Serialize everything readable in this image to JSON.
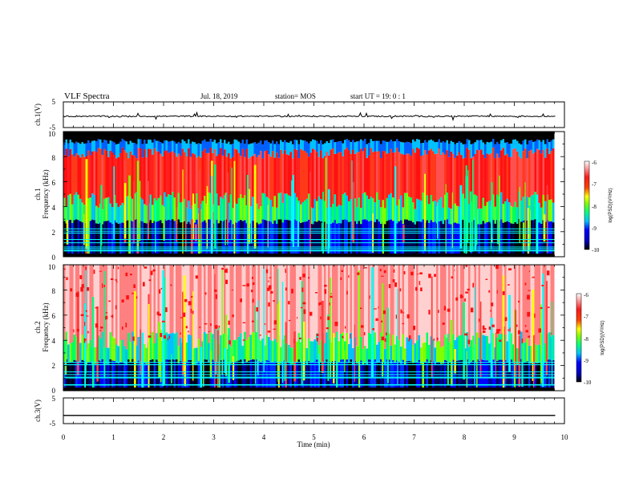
{
  "header": {
    "title": "VLF Spectra",
    "date": "Jul. 18, 2019",
    "station": "station= MOS",
    "start": "start UT =  19: 0 : 1"
  },
  "colors": {
    "spectrum": [
      "#000000",
      "#00007f",
      "#0000ff",
      "#00a0ff",
      "#00ffff",
      "#00ff60",
      "#a0ff00",
      "#ffff00",
      "#ff8000",
      "#ff2020",
      "#ff9090",
      "#ffffff"
    ],
    "trace": "#000000"
  },
  "chart_data": [
    {
      "type": "line",
      "ylabel": "ch.1(V)",
      "ylim": [
        -5,
        5
      ],
      "yticks": [
        "5",
        "-5"
      ],
      "xlim": [
        0,
        10
      ],
      "baseline": -0.6
    },
    {
      "type": "heatmap",
      "ylabel_top": "ch.1",
      "ylabel": "Frequency (kHz)",
      "ylim": [
        0,
        10
      ],
      "yticks": [
        "0",
        "2",
        "4",
        "6",
        "8",
        "10"
      ],
      "xlim": [
        0,
        9.8
      ],
      "band_kHz": {
        "blue": [
          0,
          2.8
        ],
        "green": [
          2.8,
          4.5
        ],
        "red": [
          4.5,
          8.3
        ],
        "cyan_edge": [
          8.3,
          9.2
        ],
        "black_top": [
          9.2,
          10
        ]
      },
      "colorbar": {
        "label": "log(PSD)(V²/Hz)",
        "ticks": [
          "-6",
          "-7",
          "-8",
          "-9",
          "-10"
        ],
        "range": [
          -10,
          -6
        ]
      }
    },
    {
      "type": "heatmap",
      "ylabel_top": "ch.2",
      "ylabel": "Frequency (kHz)",
      "ylim": [
        0,
        10
      ],
      "yticks": [
        "0",
        "2",
        "4",
        "6",
        "8",
        "10"
      ],
      "xlim": [
        0,
        9.8
      ],
      "band_kHz": {
        "blue": [
          0,
          2.3
        ],
        "green": [
          2.3,
          4.0
        ],
        "red": [
          4.0,
          10
        ]
      },
      "colorbar": {
        "label": "log(PSD)(V²/Hz)",
        "ticks": [
          "-6",
          "-7",
          "-8",
          "-9",
          "-10"
        ],
        "range": [
          -10,
          -6
        ]
      }
    },
    {
      "type": "line",
      "ylabel": "ch.3(V)",
      "ylim": [
        -5,
        5
      ],
      "yticks": [
        "5",
        "-5"
      ],
      "xlim": [
        0,
        10
      ],
      "baseline": -1.8
    }
  ],
  "xaxis": {
    "label": "Time (min)",
    "ticks": [
      "0",
      "1",
      "2",
      "3",
      "4",
      "5",
      "6",
      "7",
      "8",
      "9",
      "10"
    ]
  }
}
